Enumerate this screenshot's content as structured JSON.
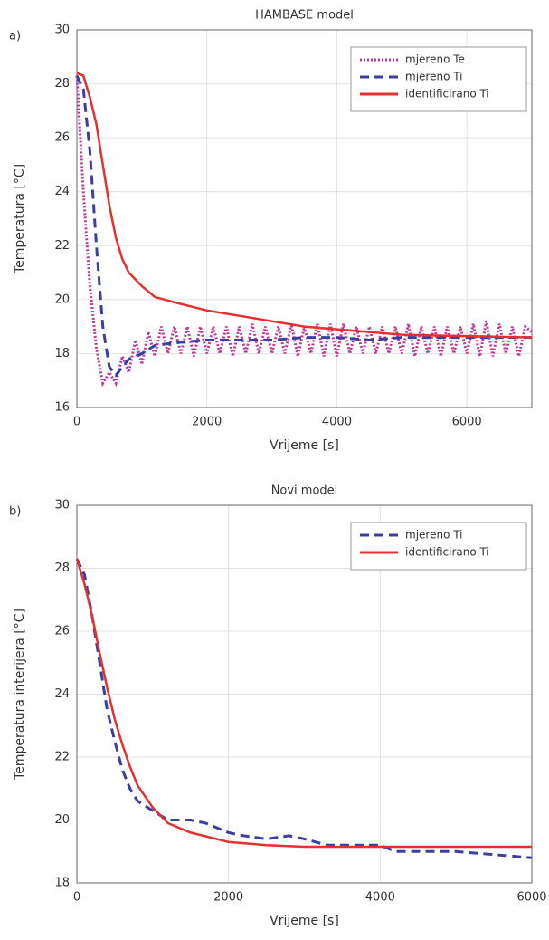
{
  "chart_data": [
    {
      "type": "line",
      "panel_label": "a)",
      "title": "HAMBASE model",
      "xlabel": "Vrijeme [s]",
      "ylabel": "Temperatura [°C]",
      "xlim": [
        0,
        7000
      ],
      "ylim": [
        16,
        30
      ],
      "xticks": [
        0,
        2000,
        4000,
        6000
      ],
      "yticks": [
        16,
        18,
        20,
        22,
        24,
        26,
        28,
        30
      ],
      "grid": true,
      "legend": "upper right",
      "series": [
        {
          "name": "mjereno Te",
          "color": "#c0399a",
          "linestyle": "dotted",
          "x": [
            0,
            100,
            200,
            300,
            400,
            500,
            600,
            700,
            800,
            900,
            1000,
            1100,
            1200,
            1300,
            1400,
            1500,
            1600,
            1700,
            1800,
            1900,
            2000,
            2100,
            2200,
            2300,
            2400,
            2500,
            2600,
            2700,
            2800,
            2900,
            3000,
            3100,
            3200,
            3300,
            3400,
            3500,
            3600,
            3700,
            3800,
            3900,
            4000,
            4100,
            4200,
            4300,
            4400,
            4500,
            4600,
            4700,
            4800,
            4900,
            5000,
            5100,
            5200,
            5300,
            5400,
            5500,
            5600,
            5700,
            5800,
            5900,
            6000,
            6100,
            6200,
            6300,
            6400,
            6500,
            6600,
            6700,
            6800,
            6900,
            7000
          ],
          "values": [
            28.3,
            24.0,
            20.5,
            18.2,
            16.9,
            17.3,
            16.9,
            17.9,
            17.3,
            18.5,
            17.6,
            18.8,
            17.9,
            19.0,
            18.0,
            19.0,
            18.0,
            19.0,
            17.9,
            19.0,
            18.0,
            19.0,
            18.0,
            19.0,
            17.9,
            19.0,
            18.0,
            19.1,
            18.0,
            19.0,
            18.0,
            19.0,
            18.0,
            19.1,
            17.9,
            19.0,
            18.0,
            19.1,
            17.9,
            19.1,
            17.9,
            19.1,
            18.0,
            19.0,
            18.0,
            19.0,
            18.0,
            19.0,
            18.0,
            19.0,
            18.0,
            19.1,
            17.9,
            19.0,
            18.0,
            19.0,
            17.9,
            19.0,
            18.0,
            19.0,
            18.0,
            19.1,
            17.9,
            19.2,
            17.9,
            19.1,
            18.0,
            19.0,
            17.9,
            19.0,
            18.8
          ]
        },
        {
          "name": "mjereno Ti",
          "color": "#3a3fa0",
          "linestyle": "dashed",
          "x": [
            0,
            100,
            200,
            300,
            400,
            500,
            600,
            700,
            800,
            1000,
            1200,
            1500,
            2000,
            2500,
            3000,
            3500,
            4000,
            4500,
            5000,
            6000,
            7000
          ],
          "values": [
            28.3,
            27.8,
            25.5,
            22.0,
            19.0,
            17.5,
            17.2,
            17.5,
            17.8,
            18.0,
            18.3,
            18.4,
            18.5,
            18.5,
            18.5,
            18.6,
            18.6,
            18.5,
            18.6,
            18.6,
            18.6
          ]
        },
        {
          "name": "identificirano Ti",
          "color": "#e53030",
          "linestyle": "solid",
          "x": [
            0,
            100,
            200,
            300,
            400,
            500,
            600,
            700,
            800,
            1000,
            1200,
            1500,
            2000,
            2500,
            3000,
            3500,
            4000,
            4500,
            5000,
            6000,
            7000
          ],
          "values": [
            28.4,
            28.3,
            27.5,
            26.5,
            25.0,
            23.5,
            22.3,
            21.5,
            21.0,
            20.5,
            20.1,
            19.9,
            19.6,
            19.4,
            19.2,
            19.0,
            18.9,
            18.8,
            18.7,
            18.65,
            18.6
          ]
        }
      ]
    },
    {
      "type": "line",
      "panel_label": "b)",
      "title": "Novi model",
      "xlabel": "Vrijeme [s]",
      "ylabel": "Temperatura interijera [°C]",
      "xlim": [
        0,
        6000
      ],
      "ylim": [
        18,
        30
      ],
      "xticks": [
        0,
        2000,
        4000,
        6000
      ],
      "yticks": [
        18,
        20,
        22,
        24,
        26,
        28,
        30
      ],
      "grid": true,
      "legend": "upper right",
      "series": [
        {
          "name": "mjereno Ti",
          "color": "#3a3fa0",
          "linestyle": "dashed",
          "x": [
            0,
            100,
            200,
            300,
            400,
            500,
            600,
            700,
            800,
            1000,
            1200,
            1500,
            1700,
            2000,
            2200,
            2500,
            2800,
            3000,
            3300,
            3600,
            4000,
            4200,
            4500,
            5000,
            5500,
            6000
          ],
          "values": [
            28.3,
            27.8,
            26.5,
            25.0,
            23.5,
            22.5,
            21.6,
            21.0,
            20.6,
            20.3,
            20.0,
            20.0,
            19.9,
            19.6,
            19.5,
            19.4,
            19.5,
            19.4,
            19.2,
            19.2,
            19.2,
            19.0,
            19.0,
            19.0,
            18.9,
            18.8
          ]
        },
        {
          "name": "identificirano Ti",
          "color": "#e53030",
          "linestyle": "solid",
          "x": [
            0,
            100,
            200,
            300,
            400,
            500,
            600,
            700,
            800,
            1000,
            1200,
            1500,
            2000,
            2500,
            3000,
            4000,
            5000,
            6000
          ],
          "values": [
            28.3,
            27.5,
            26.5,
            25.3,
            24.2,
            23.2,
            22.4,
            21.7,
            21.1,
            20.4,
            19.9,
            19.6,
            19.3,
            19.2,
            19.15,
            19.15,
            19.15,
            19.15
          ]
        }
      ]
    }
  ]
}
